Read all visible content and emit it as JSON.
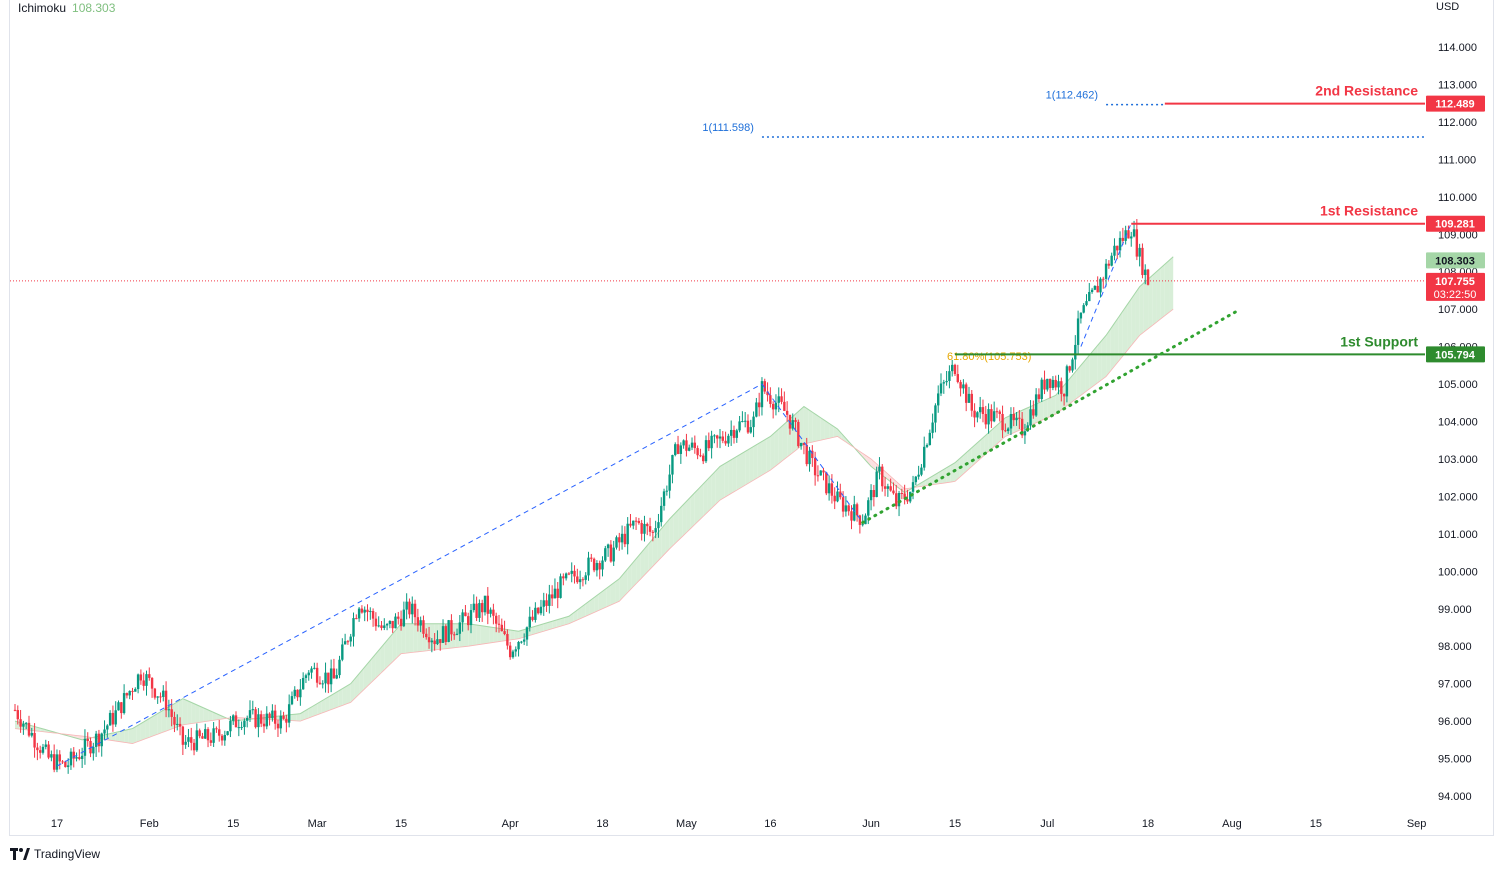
{
  "legend": {
    "indicator": "Ichimoku",
    "value": "108.303"
  },
  "currency": "USD",
  "brand": {
    "name": "TradingView"
  },
  "chart_data": {
    "type": "candlestick",
    "title": "",
    "y_axis": {
      "min": 94.0,
      "max": 115.0,
      "ticks": [
        "94.000",
        "95.000",
        "96.000",
        "97.000",
        "98.000",
        "99.000",
        "100.000",
        "101.000",
        "102.000",
        "103.000",
        "104.000",
        "105.000",
        "106.000",
        "107.000",
        "108.000",
        "109.000",
        "110.000",
        "111.000",
        "112.000",
        "113.000",
        "114.000"
      ]
    },
    "x_axis": {
      "unit": "trading day index",
      "min": 0,
      "max": 168,
      "ticks": [
        {
          "label": "17",
          "day": 5
        },
        {
          "label": "Feb",
          "day": 16
        },
        {
          "label": "15",
          "day": 26
        },
        {
          "label": "Mar",
          "day": 36
        },
        {
          "label": "15",
          "day": 46
        },
        {
          "label": "Apr",
          "day": 59
        },
        {
          "label": "18",
          "day": 70
        },
        {
          "label": "May",
          "day": 80
        },
        {
          "label": "16",
          "day": 90
        },
        {
          "label": "Jun",
          "day": 102
        },
        {
          "label": "15",
          "day": 112
        },
        {
          "label": "Jul",
          "day": 123
        },
        {
          "label": "18",
          "day": 135
        },
        {
          "label": "Aug",
          "day": 145
        },
        {
          "label": "15",
          "day": 155
        },
        {
          "label": "Sep",
          "day": 167
        }
      ]
    },
    "price_path": [
      {
        "day": 0,
        "price": 96.3
      },
      {
        "day": 4,
        "price": 95.0
      },
      {
        "day": 6,
        "price": 94.8
      },
      {
        "day": 10,
        "price": 95.6
      },
      {
        "day": 12,
        "price": 96.2
      },
      {
        "day": 15,
        "price": 97.3
      },
      {
        "day": 18,
        "price": 96.5
      },
      {
        "day": 20,
        "price": 95.4
      },
      {
        "day": 24,
        "price": 95.6
      },
      {
        "day": 27,
        "price": 96.1
      },
      {
        "day": 32,
        "price": 96.0
      },
      {
        "day": 35,
        "price": 97.4
      },
      {
        "day": 38,
        "price": 97.1
      },
      {
        "day": 41,
        "price": 99.2
      },
      {
        "day": 44,
        "price": 98.4
      },
      {
        "day": 47,
        "price": 99.0
      },
      {
        "day": 50,
        "price": 98.2
      },
      {
        "day": 53,
        "price": 98.6
      },
      {
        "day": 56,
        "price": 99.1
      },
      {
        "day": 59,
        "price": 97.9
      },
      {
        "day": 62,
        "price": 98.8
      },
      {
        "day": 65,
        "price": 99.6
      },
      {
        "day": 68,
        "price": 100.1
      },
      {
        "day": 71,
        "price": 100.5
      },
      {
        "day": 74,
        "price": 101.3
      },
      {
        "day": 76,
        "price": 101.0
      },
      {
        "day": 79,
        "price": 103.4
      },
      {
        "day": 82,
        "price": 103.2
      },
      {
        "day": 84,
        "price": 103.5
      },
      {
        "day": 86,
        "price": 103.9
      },
      {
        "day": 88,
        "price": 104.0
      },
      {
        "day": 89,
        "price": 104.9
      },
      {
        "day": 92,
        "price": 104.2
      },
      {
        "day": 95,
        "price": 102.8
      },
      {
        "day": 98,
        "price": 101.9
      },
      {
        "day": 101,
        "price": 101.4
      },
      {
        "day": 103,
        "price": 102.6
      },
      {
        "day": 105,
        "price": 101.8
      },
      {
        "day": 107,
        "price": 102.2
      },
      {
        "day": 110,
        "price": 104.7
      },
      {
        "day": 112,
        "price": 105.5
      },
      {
        "day": 114,
        "price": 104.3
      },
      {
        "day": 117,
        "price": 104.1
      },
      {
        "day": 120,
        "price": 103.8
      },
      {
        "day": 123,
        "price": 105.2
      },
      {
        "day": 125,
        "price": 104.9
      },
      {
        "day": 127,
        "price": 106.8
      },
      {
        "day": 129,
        "price": 107.6
      },
      {
        "day": 131,
        "price": 108.6
      },
      {
        "day": 133,
        "price": 109.2
      },
      {
        "day": 134,
        "price": 108.4
      },
      {
        "day": 135,
        "price": 107.755
      }
    ],
    "ichimoku_cloud": {
      "span_a": [
        {
          "day": 0,
          "price": 96.0
        },
        {
          "day": 8,
          "price": 95.5
        },
        {
          "day": 14,
          "price": 95.8
        },
        {
          "day": 20,
          "price": 96.6
        },
        {
          "day": 26,
          "price": 96.0
        },
        {
          "day": 34,
          "price": 96.2
        },
        {
          "day": 40,
          "price": 97.0
        },
        {
          "day": 46,
          "price": 98.6
        },
        {
          "day": 54,
          "price": 98.6
        },
        {
          "day": 60,
          "price": 98.4
        },
        {
          "day": 66,
          "price": 98.8
        },
        {
          "day": 72,
          "price": 99.8
        },
        {
          "day": 78,
          "price": 101.4
        },
        {
          "day": 84,
          "price": 102.8
        },
        {
          "day": 90,
          "price": 103.6
        },
        {
          "day": 94,
          "price": 104.4
        },
        {
          "day": 98,
          "price": 103.8
        },
        {
          "day": 102,
          "price": 102.8
        },
        {
          "day": 106,
          "price": 102.1
        },
        {
          "day": 112,
          "price": 102.9
        },
        {
          "day": 118,
          "price": 104.1
        },
        {
          "day": 124,
          "price": 104.7
        },
        {
          "day": 130,
          "price": 106.3
        },
        {
          "day": 134,
          "price": 107.6
        },
        {
          "day": 138,
          "price": 108.4
        }
      ],
      "span_b": [
        {
          "day": 0,
          "price": 95.8
        },
        {
          "day": 8,
          "price": 95.6
        },
        {
          "day": 14,
          "price": 95.4
        },
        {
          "day": 20,
          "price": 95.9
        },
        {
          "day": 26,
          "price": 96.1
        },
        {
          "day": 34,
          "price": 96.0
        },
        {
          "day": 40,
          "price": 96.5
        },
        {
          "day": 46,
          "price": 97.8
        },
        {
          "day": 54,
          "price": 98.0
        },
        {
          "day": 60,
          "price": 98.2
        },
        {
          "day": 66,
          "price": 98.6
        },
        {
          "day": 72,
          "price": 99.2
        },
        {
          "day": 78,
          "price": 100.6
        },
        {
          "day": 84,
          "price": 101.9
        },
        {
          "day": 90,
          "price": 102.7
        },
        {
          "day": 94,
          "price": 103.4
        },
        {
          "day": 98,
          "price": 103.6
        },
        {
          "day": 102,
          "price": 103.0
        },
        {
          "day": 106,
          "price": 102.2
        },
        {
          "day": 112,
          "price": 102.4
        },
        {
          "day": 118,
          "price": 103.6
        },
        {
          "day": 124,
          "price": 104.2
        },
        {
          "day": 130,
          "price": 105.2
        },
        {
          "day": 134,
          "price": 106.3
        },
        {
          "day": 138,
          "price": 107.0
        }
      ]
    },
    "swing_lines": [
      {
        "from": {
          "day": 5,
          "price": 94.8
        },
        "to": {
          "day": 89,
          "price": 105.0
        }
      },
      {
        "from": {
          "day": 89,
          "price": 105.0
        },
        "to": {
          "day": 101,
          "price": 101.3
        }
      },
      {
        "from": {
          "day": 127,
          "price": 106.0
        },
        "to": {
          "day": 133,
          "price": 109.3
        }
      }
    ],
    "levels": [
      {
        "label": "2nd Resistance",
        "price": 112.489,
        "tag": "112.489",
        "color": "#f23645",
        "from_day": 137
      },
      {
        "label": "1st Resistance",
        "price": 109.281,
        "tag": "109.281",
        "color": "#f23645",
        "from_day": 133
      },
      {
        "label": "1st Support",
        "price": 105.794,
        "tag": "105.794",
        "color": "#2e8b2e",
        "from_day": 112
      }
    ],
    "extension_levels": [
      {
        "label": "1(112.462)",
        "price": 112.462,
        "from_day": 130,
        "to_day": 137
      },
      {
        "label": "1(111.598)",
        "price": 111.598,
        "from_day": 89,
        "to_day": 168
      }
    ],
    "fib_label": {
      "label": "61.80%(105.753)",
      "price": 105.753,
      "day": 112
    },
    "trendline": {
      "from": {
        "day": 101,
        "price": 101.3
      },
      "to": {
        "day": 146,
        "price": 107.0
      }
    },
    "current_price": {
      "price": 107.755,
      "label": "107.755",
      "countdown": "03:22:50",
      "ichimoku_price": 108.303,
      "ichimoku_label": "108.303"
    },
    "colors": {
      "up": "#089981",
      "down": "#f23645",
      "cloud_bull": "#d4ecd4",
      "cloud_bear": "#fbdede",
      "swing": "#2962ff",
      "ext": "#1e6fd9",
      "fib": "#e6a700",
      "trend": "#31a331",
      "current": "#f23645"
    }
  }
}
